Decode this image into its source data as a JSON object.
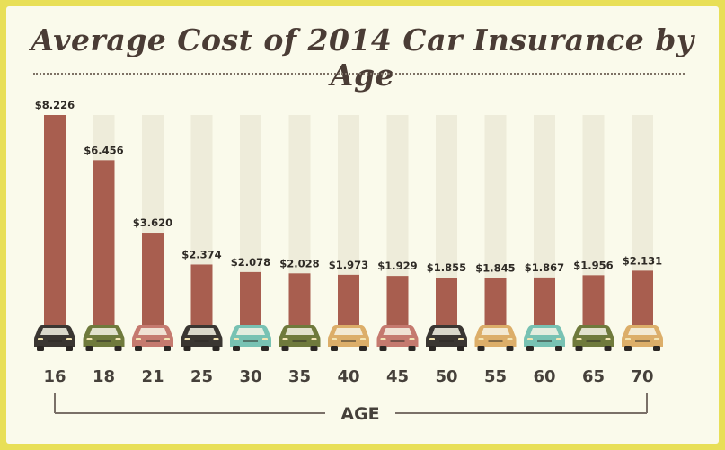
{
  "chart_data": {
    "type": "bar",
    "title": "Average Cost of 2014 Car Insurance by Age",
    "xlabel": "AGE",
    "ylabel": "",
    "categories": [
      "16",
      "18",
      "21",
      "25",
      "30",
      "35",
      "40",
      "45",
      "50",
      "55",
      "60",
      "65",
      "70"
    ],
    "values": [
      8226,
      6456,
      3620,
      2374,
      2078,
      2028,
      1973,
      1929,
      1855,
      1845,
      1867,
      1956,
      2131
    ],
    "value_labels": [
      "$8.226",
      "$6.456",
      "$3.620",
      "$2.374",
      "$2.078",
      "$2.028",
      "$1.973",
      "$1.929",
      "$1.855",
      "$1.845",
      "$1.867",
      "$1.956",
      "$2.131"
    ],
    "ylim": [
      0,
      8226
    ],
    "grid": false,
    "legend": "none"
  },
  "colors": {
    "background": "#fafaeb",
    "border": "#e8df57",
    "bar": "#a85e4f",
    "track": "#eeecda",
    "text": "#45403a",
    "car_colors": [
      "#3a3632",
      "#6f7a3c",
      "#c57a6f",
      "#3a3632",
      "#78c2b3",
      "#6f7a3c",
      "#dcae69",
      "#c57a6f",
      "#3a3632",
      "#dcae69",
      "#78c2b3",
      "#6f7a3c",
      "#dcae69"
    ]
  },
  "icons": {
    "car": "car-icon"
  }
}
